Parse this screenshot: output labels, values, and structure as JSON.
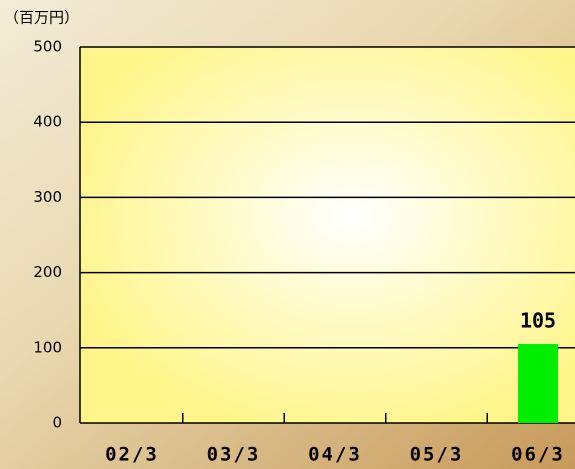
{
  "chart_data": {
    "type": "bar",
    "y_label": "（百万円）",
    "categories": [
      "02/3",
      "03/3",
      "04/3",
      "05/3",
      "06/3"
    ],
    "values": [
      null,
      null,
      null,
      null,
      105
    ],
    "color": "#00ee00",
    "ylim": [
      0,
      500
    ],
    "yticks": [
      0,
      100,
      200,
      300,
      400,
      500
    ],
    "grid": true
  }
}
